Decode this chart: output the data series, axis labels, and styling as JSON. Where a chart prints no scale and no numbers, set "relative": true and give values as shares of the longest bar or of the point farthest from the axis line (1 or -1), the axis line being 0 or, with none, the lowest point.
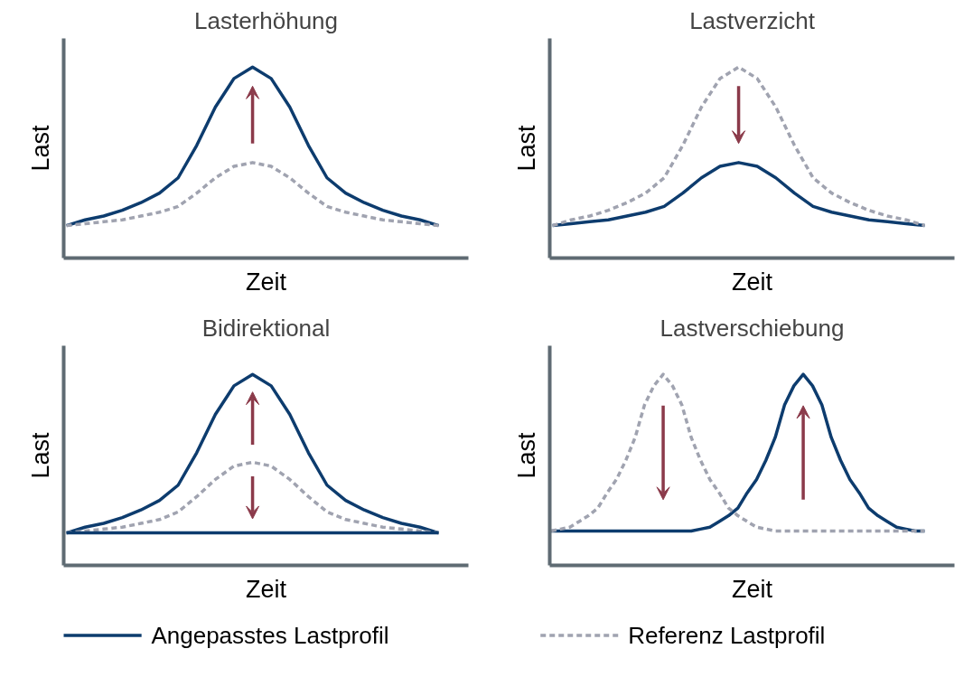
{
  "chart_data": [
    {
      "type": "line",
      "title": "Lasterhöhung",
      "xlabel": "Zeit",
      "ylabel": "Last",
      "relative": true,
      "categories": [
        null,
        null,
        null,
        null,
        null,
        null,
        null,
        null,
        null,
        null,
        null,
        null,
        null,
        null,
        null,
        null,
        null,
        null,
        null,
        null,
        null
      ],
      "series": [
        {
          "color": "#0d3c6e",
          "line_style": "solid",
          "values": [
            0.17,
            0.2,
            0.22,
            0.25,
            0.29,
            0.34,
            0.42,
            0.59,
            0.79,
            0.94,
            1.0,
            0.94,
            0.79,
            0.59,
            0.42,
            0.34,
            0.29,
            0.25,
            0.22,
            0.2,
            0.17
          ]
        },
        {
          "color": "#a0a3b0",
          "line_style": "dashed",
          "values": [
            0.17,
            0.18,
            0.19,
            0.2,
            0.22,
            0.24,
            0.27,
            0.34,
            0.42,
            0.48,
            0.5,
            0.48,
            0.42,
            0.34,
            0.27,
            0.24,
            0.22,
            0.2,
            0.19,
            0.18,
            0.17
          ]
        }
      ]
    },
    {
      "type": "line",
      "title": "Lastverzicht",
      "xlabel": "Zeit",
      "ylabel": "Last",
      "relative": true,
      "categories": [
        null,
        null,
        null,
        null,
        null,
        null,
        null,
        null,
        null,
        null,
        null,
        null,
        null,
        null,
        null,
        null,
        null,
        null,
        null,
        null,
        null
      ],
      "series": [
        {
          "color": "#0d3c6e",
          "line_style": "solid",
          "values": [
            0.17,
            0.18,
            0.19,
            0.2,
            0.22,
            0.24,
            0.27,
            0.34,
            0.42,
            0.48,
            0.5,
            0.48,
            0.42,
            0.34,
            0.27,
            0.24,
            0.22,
            0.2,
            0.19,
            0.18,
            0.17
          ]
        },
        {
          "color": "#a0a3b0",
          "line_style": "dashed",
          "values": [
            0.17,
            0.2,
            0.22,
            0.25,
            0.29,
            0.34,
            0.42,
            0.59,
            0.79,
            0.94,
            1.0,
            0.94,
            0.79,
            0.59,
            0.42,
            0.34,
            0.29,
            0.25,
            0.22,
            0.2,
            0.17
          ]
        }
      ]
    },
    {
      "type": "line",
      "title": "Bidirektional",
      "xlabel": "Zeit",
      "ylabel": "Last",
      "relative": true,
      "categories": [
        null,
        null,
        null,
        null,
        null,
        null,
        null,
        null,
        null,
        null,
        null,
        null,
        null,
        null,
        null,
        null,
        null,
        null,
        null,
        null,
        null
      ],
      "series": [
        {
          "color": "#0d3c6e",
          "line_style": "solid",
          "values": [
            0.17,
            0.2,
            0.22,
            0.25,
            0.29,
            0.34,
            0.42,
            0.59,
            0.79,
            0.94,
            1.0,
            0.94,
            0.79,
            0.59,
            0.42,
            0.34,
            0.29,
            0.25,
            0.22,
            0.2,
            0.17
          ]
        },
        {
          "color": "#a0a3b0",
          "line_style": "dashed",
          "values": [
            0.17,
            0.18,
            0.19,
            0.2,
            0.22,
            0.24,
            0.28,
            0.36,
            0.45,
            0.52,
            0.54,
            0.52,
            0.45,
            0.36,
            0.28,
            0.24,
            0.22,
            0.2,
            0.19,
            0.18,
            0.17
          ]
        },
        {
          "color": "#0d3c6e",
          "line_style": "solid",
          "values": [
            0.17,
            0.17,
            0.17,
            0.17,
            0.17,
            0.17,
            0.17,
            0.17,
            0.17,
            0.17,
            0.17,
            0.17,
            0.17,
            0.17,
            0.17,
            0.17,
            0.17,
            0.17,
            0.17,
            0.17,
            0.17
          ]
        }
      ]
    },
    {
      "type": "line",
      "title": "Lastverschiebung",
      "xlabel": "Zeit",
      "ylabel": "Last",
      "relative": true,
      "legend": "bottom",
      "categories": [
        null,
        null,
        null,
        null,
        null,
        null,
        null,
        null,
        null,
        null,
        null,
        null,
        null,
        null,
        null,
        null,
        null,
        null,
        null,
        null,
        null,
        null,
        null,
        null,
        null,
        null,
        null,
        null,
        null,
        null,
        null,
        null,
        null,
        null,
        null,
        null,
        null,
        null,
        null,
        null,
        null
      ],
      "series": [
        {
          "name": "Angepasstes Lastprofil",
          "color": "#0d3c6e",
          "line_style": "solid",
          "values": [
            0.18,
            0.18,
            0.18,
            0.18,
            0.18,
            0.18,
            0.18,
            0.18,
            0.18,
            0.18,
            0.18,
            0.18,
            0.18,
            0.18,
            0.18,
            0.18,
            0.19,
            0.2,
            0.23,
            0.26,
            0.3,
            0.38,
            0.45,
            0.55,
            0.67,
            0.84,
            0.94,
            1.0,
            0.94,
            0.84,
            0.67,
            0.55,
            0.45,
            0.38,
            0.3,
            0.26,
            0.23,
            0.2,
            0.19,
            0.18,
            0.18
          ]
        },
        {
          "name": "Referenz Lastprofil",
          "color": "#a0a3b0",
          "line_style": "dashed",
          "values": [
            0.18,
            0.19,
            0.2,
            0.23,
            0.26,
            0.3,
            0.38,
            0.45,
            0.55,
            0.67,
            0.84,
            0.94,
            1.0,
            0.94,
            0.84,
            0.67,
            0.55,
            0.45,
            0.38,
            0.3,
            0.26,
            0.23,
            0.2,
            0.19,
            0.18,
            0.18,
            0.18,
            0.18,
            0.18,
            0.18,
            0.18,
            0.18,
            0.18,
            0.18,
            0.18,
            0.18,
            0.18,
            0.18,
            0.18,
            0.18,
            0.18
          ]
        }
      ]
    }
  ]
}
